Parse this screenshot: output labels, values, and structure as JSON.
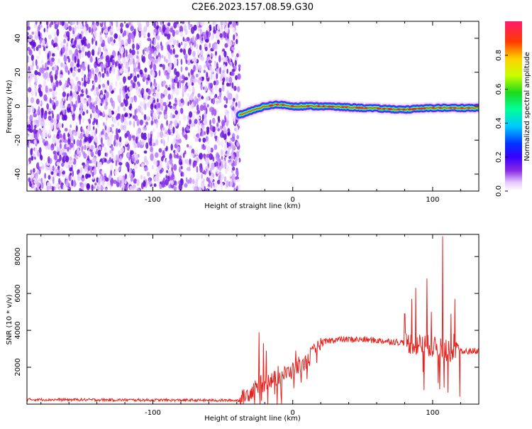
{
  "title": "C2E6.2023.157.08.59.G30",
  "chart_data": [
    {
      "type": "heatmap",
      "xlabel": "Height of straight line (km)",
      "ylabel": "Frequency (Hz)",
      "xlim": [
        -190,
        133
      ],
      "ylim": [
        -50,
        50
      ],
      "xticks": [
        -100,
        0,
        100
      ],
      "yticks": [
        -40,
        -20,
        0,
        20,
        40
      ],
      "colorbar": {
        "label": "Normalized spectral amplitude",
        "ticks": [
          0.0,
          0.2,
          0.4,
          0.6,
          0.8
        ],
        "range": [
          0,
          1
        ],
        "colors": [
          "#ffffff",
          "#d9b3ff",
          "#8a2be2",
          "#3a00ff",
          "#0000ff",
          "#00c8ff",
          "#00ff9a",
          "#1ed81e",
          "#c8ff00",
          "#ffd000",
          "#ff3a00",
          "#ff1a6e"
        ]
      },
      "regions": [
        {
          "name": "noise",
          "x_range": [
            -190,
            -38
          ],
          "f_range": [
            -50,
            50
          ]
        },
        {
          "name": "signal_track",
          "x_range": [
            -38,
            133
          ],
          "center_hz": [
            [
              -38,
              -5
            ],
            [
              -30,
              -3
            ],
            [
              -20,
              0
            ],
            [
              -10,
              1
            ],
            [
              0,
              0
            ],
            [
              20,
              0
            ],
            [
              50,
              -1
            ],
            [
              80,
              -2
            ],
            [
              100,
              -1
            ],
            [
              110,
              -1
            ],
            [
              133,
              -1
            ]
          ]
        }
      ]
    },
    {
      "type": "line",
      "xlabel": "Height of straight line (km)",
      "ylabel": "SNR (10 * v/v)",
      "xlim": [
        -190,
        133
      ],
      "ylim": [
        0,
        9200
      ],
      "xticks": [
        -100,
        0,
        100
      ],
      "yticks": [
        2000,
        4000,
        6000,
        8000
      ],
      "color": "#e8231e",
      "envelope": [
        [
          -190,
          250
        ],
        [
          -100,
          220
        ],
        [
          -38,
          200
        ],
        [
          -26,
          900
        ],
        [
          -10,
          1500
        ],
        [
          0,
          1800
        ],
        [
          10,
          2300
        ],
        [
          20,
          3300
        ],
        [
          30,
          3500
        ],
        [
          50,
          3500
        ],
        [
          70,
          3400
        ],
        [
          85,
          3300
        ],
        [
          95,
          3200
        ],
        [
          105,
          3000
        ],
        [
          115,
          2800
        ],
        [
          133,
          2900
        ]
      ],
      "spikes": [
        [
          -24,
          3900
        ],
        [
          -21,
          3300
        ],
        [
          -19,
          2900
        ],
        [
          2,
          2900
        ],
        [
          13,
          3000
        ],
        [
          80,
          4900
        ],
        [
          85,
          5700
        ],
        [
          88,
          6300
        ],
        [
          96,
          6800
        ],
        [
          99,
          5000
        ],
        [
          107,
          9100
        ],
        [
          113,
          4900
        ],
        [
          116,
          5700
        ]
      ]
    }
  ]
}
